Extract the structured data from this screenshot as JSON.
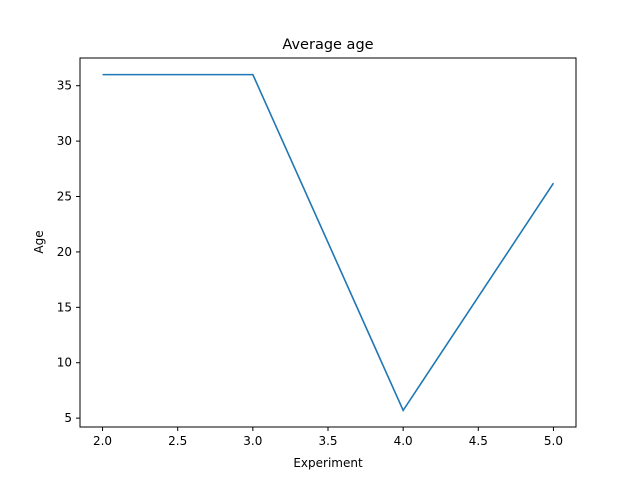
{
  "chart_data": {
    "type": "line",
    "title": "Average age",
    "xlabel": "Experiment",
    "ylabel": "Age",
    "xlim": [
      1.85,
      5.15
    ],
    "ylim": [
      4.2,
      37.5
    ],
    "xticks": [
      2.0,
      2.5,
      3.0,
      3.5,
      4.0,
      4.5,
      5.0
    ],
    "xtick_labels": [
      "2.0",
      "2.5",
      "3.0",
      "3.5",
      "4.0",
      "4.5",
      "5.0"
    ],
    "yticks": [
      5,
      10,
      15,
      20,
      25,
      30,
      35
    ],
    "ytick_labels": [
      "5",
      "10",
      "15",
      "20",
      "25",
      "30",
      "35"
    ],
    "grid": false,
    "series": [
      {
        "x": [
          2.0,
          3.0,
          4.0,
          5.0
        ],
        "values": [
          36.0,
          36.0,
          5.7,
          26.2
        ],
        "color": "#1f77b4"
      }
    ]
  }
}
